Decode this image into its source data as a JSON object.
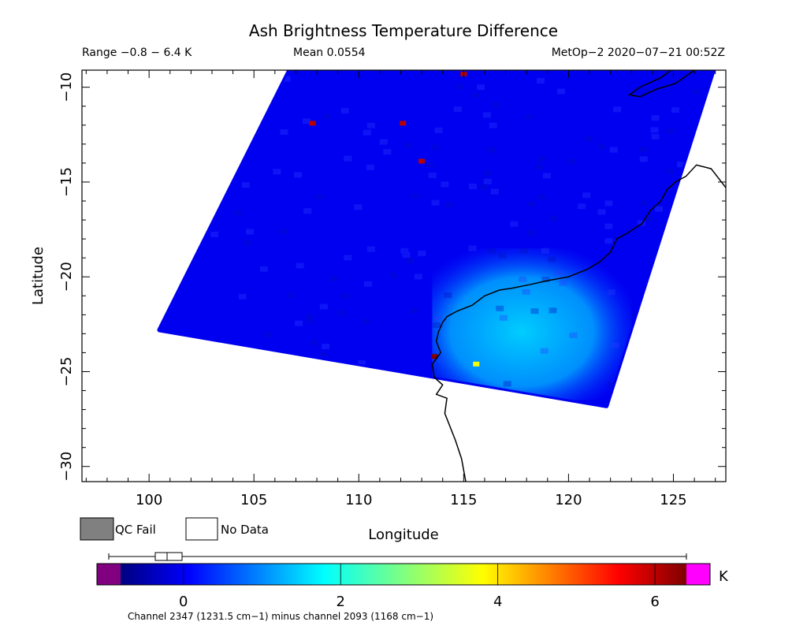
{
  "header": {
    "title": "Ash Brightness Temperature Difference",
    "range": "Range −0.8 − 6.4 K",
    "mean": "Mean 0.0554",
    "satellite_time": "MetOp−2 2020−07−21 00:52Z"
  },
  "legend": {
    "qc_fail": "QC Fail",
    "no_data": "No Data",
    "qc_fail_color": "#808080",
    "no_data_color": "#ffffff"
  },
  "colorbar": {
    "unit": "K",
    "ticks": [
      "0",
      "2",
      "4",
      "6"
    ],
    "tick_values": [
      0,
      2,
      4,
      6
    ],
    "range": [
      -0.8,
      6.4
    ],
    "below_color": "#800080",
    "above_color": "#ff00ff",
    "caption": "Channel 2347 (1231.5 cm−1) minus channel 2093 (1168 cm−1)"
  },
  "chart_data": {
    "type": "heatmap",
    "title": "Ash Brightness Temperature Difference",
    "xlabel": "Longitude",
    "ylabel": "Latitude",
    "xlim": [
      96.8,
      127.5
    ],
    "ylim": [
      -30.8,
      -9.1
    ],
    "xticks": [
      100,
      105,
      110,
      115,
      120,
      125
    ],
    "xtick_labels": [
      "100",
      "105",
      "110",
      "115",
      "120",
      "125"
    ],
    "yticks": [
      -10,
      -15,
      -20,
      -25,
      -30
    ],
    "ytick_labels": [
      "−10",
      "−15",
      "−20",
      "−25",
      "−30"
    ],
    "swath_corners": [
      {
        "lon": 106.7,
        "lat": -9.1
      },
      {
        "lon": 126.9,
        "lat": -9.1
      },
      {
        "lon": 121.8,
        "lat": -26.8
      },
      {
        "lon": 100.5,
        "lat": -22.8
      }
    ],
    "background_value_K": 0.0,
    "elevated_region": {
      "lon_range": [
        113.5,
        123
      ],
      "lat_range": [
        -26.5,
        -18.5
      ],
      "value_K": 1.8
    },
    "hotspots": [
      {
        "lon": 115.6,
        "lat": -24.6,
        "value_K": 3.7
      },
      {
        "lon": 113.6,
        "lat": -24.2,
        "value_K": 6.4
      },
      {
        "lon": 107.8,
        "lat": -11.9,
        "value_K": 6.0
      },
      {
        "lon": 112.1,
        "lat": -11.9,
        "value_K": 6.0
      },
      {
        "lon": 113.0,
        "lat": -13.9,
        "value_K": 6.0
      },
      {
        "lon": 115.0,
        "lat": -9.3,
        "value_K": 6.0
      }
    ],
    "coastline": "Western Australia",
    "colormap": [
      "#00007f",
      "#0000ff",
      "#00ffff",
      "#ffff00",
      "#ff0000",
      "#7f0000"
    ],
    "grid": false
  }
}
